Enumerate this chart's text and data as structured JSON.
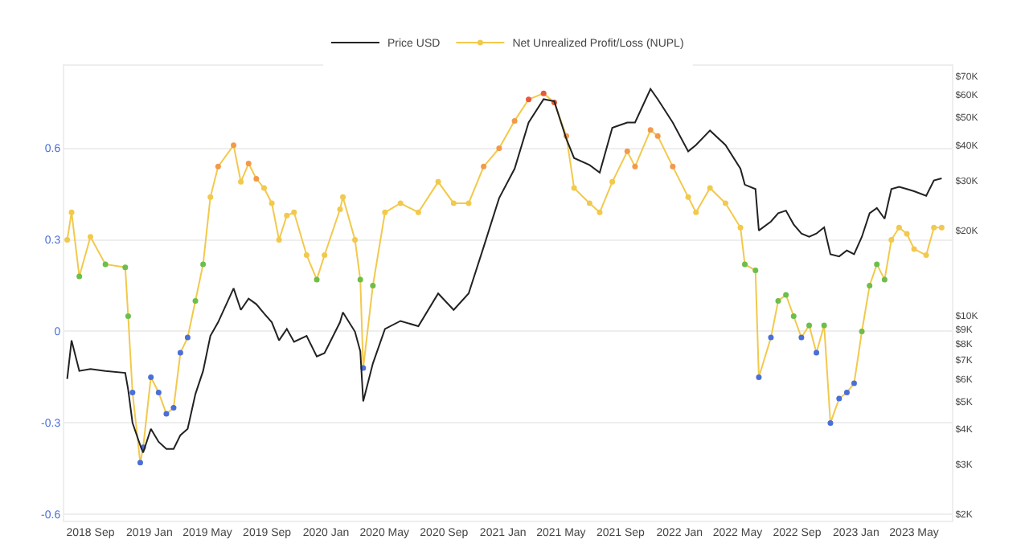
{
  "chart_data": {
    "type": "line",
    "x": [
      "2018-07-15",
      "2018-07-24",
      "2018-08-09",
      "2018-09-01",
      "2018-10-02",
      "2018-11-12",
      "2018-11-18",
      "2018-11-27",
      "2018-12-13",
      "2018-12-19",
      "2019-01-04",
      "2019-01-20",
      "2019-02-05",
      "2019-02-20",
      "2019-03-06",
      "2019-03-21",
      "2019-04-06",
      "2019-04-22",
      "2019-05-07",
      "2019-05-23",
      "2019-06-24",
      "2019-07-09",
      "2019-07-25",
      "2019-08-10",
      "2019-08-26",
      "2019-09-11",
      "2019-09-26",
      "2019-10-12",
      "2019-10-27",
      "2019-11-22",
      "2019-12-13",
      "2019-12-29",
      "2020-01-30",
      "2020-02-05",
      "2020-03-01",
      "2020-03-12",
      "2020-03-18",
      "2020-04-07",
      "2020-05-02",
      "2020-06-03",
      "2020-07-10",
      "2020-08-20",
      "2020-09-21",
      "2020-10-22",
      "2020-11-22",
      "2020-12-24",
      "2021-01-25",
      "2021-02-23",
      "2021-03-26",
      "2021-04-17",
      "2021-05-12",
      "2021-05-28",
      "2021-06-29",
      "2021-07-20",
      "2021-08-15",
      "2021-09-15",
      "2021-10-01",
      "2021-11-02",
      "2021-11-17",
      "2021-12-18",
      "2022-01-19",
      "2022-02-04",
      "2022-03-05",
      "2022-04-06",
      "2022-05-07",
      "2022-05-16",
      "2022-06-07",
      "2022-06-14",
      "2022-07-09",
      "2022-07-24",
      "2022-08-09",
      "2022-08-25",
      "2022-09-10",
      "2022-09-26",
      "2022-10-11",
      "2022-10-27",
      "2022-11-09",
      "2022-11-27",
      "2022-12-13",
      "2022-12-28",
      "2023-01-13",
      "2023-01-29",
      "2023-02-13",
      "2023-03-01",
      "2023-03-15",
      "2023-03-31",
      "2023-04-16",
      "2023-05-01",
      "2023-05-26",
      "2023-06-11",
      "2023-06-27"
    ],
    "series": [
      {
        "name": "Price USD",
        "color": "#222222",
        "axis": "y2",
        "marker": "none",
        "values": [
          6000,
          8200,
          6400,
          6500,
          6400,
          6300,
          5500,
          4200,
          3500,
          3300,
          4000,
          3600,
          3400,
          3400,
          3800,
          4000,
          5300,
          6400,
          8500,
          9500,
          12500,
          10500,
          11500,
          11000,
          10200,
          9500,
          8200,
          9000,
          8100,
          8500,
          7200,
          7400,
          9500,
          10300,
          8800,
          7500,
          5000,
          6800,
          9000,
          9600,
          9200,
          12000,
          10500,
          12000,
          17500,
          26000,
          33000,
          48000,
          58000,
          57000,
          42000,
          36000,
          34000,
          32000,
          46000,
          48000,
          48000,
          63000,
          58000,
          48000,
          38000,
          40000,
          45000,
          40000,
          33000,
          29000,
          28000,
          20000,
          21500,
          23000,
          23500,
          21000,
          19500,
          19000,
          19500,
          20500,
          16500,
          16200,
          17000,
          16500,
          19000,
          23000,
          24000,
          22000,
          28000,
          28500,
          28000,
          27500,
          26500,
          30000,
          30500
        ]
      },
      {
        "name": "Net Unrealized Profit/Loss (NUPL)",
        "color": "#f2c94c",
        "axis": "y",
        "marker": "circle",
        "values": [
          0.3,
          0.39,
          0.18,
          0.31,
          0.22,
          0.21,
          0.05,
          -0.2,
          -0.43,
          -0.38,
          -0.15,
          -0.2,
          -0.27,
          -0.25,
          -0.07,
          -0.02,
          0.1,
          0.22,
          0.44,
          0.54,
          0.61,
          0.49,
          0.55,
          0.5,
          0.47,
          0.42,
          0.3,
          0.38,
          0.39,
          0.25,
          0.17,
          0.25,
          0.4,
          0.44,
          0.3,
          0.17,
          -0.12,
          0.15,
          0.39,
          0.42,
          0.39,
          0.49,
          0.42,
          0.42,
          0.54,
          0.6,
          0.69,
          0.76,
          0.78,
          0.75,
          0.64,
          0.47,
          0.42,
          0.39,
          0.49,
          0.59,
          0.54,
          0.66,
          0.64,
          0.54,
          0.44,
          0.39,
          0.47,
          0.42,
          0.34,
          0.22,
          0.2,
          -0.15,
          -0.02,
          0.1,
          0.12,
          0.05,
          -0.02,
          0.02,
          -0.07,
          0.02,
          -0.3,
          -0.22,
          -0.2,
          -0.17,
          0.0,
          0.15,
          0.22,
          0.17,
          0.3,
          0.34,
          0.32,
          0.27,
          0.25,
          0.34,
          0.34
        ],
        "colors": [
          "#f2c94c",
          "#f2c94c",
          "#6cbf4a",
          "#f2c94c",
          "#6cbf4a",
          "#6cbf4a",
          "#6cbf4a",
          "#4a6fd6",
          "#4a6fd6",
          "#4a6fd6",
          "#4a6fd6",
          "#4a6fd6",
          "#4a6fd6",
          "#4a6fd6",
          "#4a6fd6",
          "#4a6fd6",
          "#6cbf4a",
          "#6cbf4a",
          "#f2c94c",
          "#f29a4a",
          "#f29a4a",
          "#f2c94c",
          "#f29a4a",
          "#f29a4a",
          "#f2c94c",
          "#f2c94c",
          "#f2c94c",
          "#f2c94c",
          "#f2c94c",
          "#f2c94c",
          "#6cbf4a",
          "#f2c94c",
          "#f2c94c",
          "#f2c94c",
          "#f2c94c",
          "#6cbf4a",
          "#4a6fd6",
          "#6cbf4a",
          "#f2c94c",
          "#f2c94c",
          "#f2c94c",
          "#f2c94c",
          "#f2c94c",
          "#f2c94c",
          "#f29a4a",
          "#f29a4a",
          "#f29a4a",
          "#e8583a",
          "#e8583a",
          "#e8583a",
          "#f29a4a",
          "#f2c94c",
          "#f2c94c",
          "#f2c94c",
          "#f2c94c",
          "#f29a4a",
          "#f29a4a",
          "#f29a4a",
          "#f29a4a",
          "#f29a4a",
          "#f2c94c",
          "#f2c94c",
          "#f2c94c",
          "#f2c94c",
          "#f2c94c",
          "#6cbf4a",
          "#6cbf4a",
          "#4a6fd6",
          "#4a6fd6",
          "#6cbf4a",
          "#6cbf4a",
          "#6cbf4a",
          "#4a6fd6",
          "#6cbf4a",
          "#4a6fd6",
          "#6cbf4a",
          "#4a6fd6",
          "#4a6fd6",
          "#4a6fd6",
          "#4a6fd6",
          "#6cbf4a",
          "#6cbf4a",
          "#6cbf4a",
          "#6cbf4a",
          "#f2c94c",
          "#f2c94c",
          "#f2c94c",
          "#f2c94c",
          "#f2c94c",
          "#f2c94c",
          "#f2c94c"
        ]
      }
    ],
    "xlim": [
      "2018-07-09",
      "2023-07-18"
    ],
    "xticks": [
      {
        "value": "2018-09-01",
        "label": "2018 Sep"
      },
      {
        "value": "2019-01-01",
        "label": "2019 Jan"
      },
      {
        "value": "2019-05-01",
        "label": "2019 May"
      },
      {
        "value": "2019-09-01",
        "label": "2019 Sep"
      },
      {
        "value": "2020-01-01",
        "label": "2020 Jan"
      },
      {
        "value": "2020-05-01",
        "label": "2020 May"
      },
      {
        "value": "2020-09-01",
        "label": "2020 Sep"
      },
      {
        "value": "2021-01-01",
        "label": "2021 Jan"
      },
      {
        "value": "2021-05-01",
        "label": "2021 May"
      },
      {
        "value": "2021-09-01",
        "label": "2021 Sep"
      },
      {
        "value": "2022-01-01",
        "label": "2022 Jan"
      },
      {
        "value": "2022-05-01",
        "label": "2022 May"
      },
      {
        "value": "2022-09-01",
        "label": "2022 Sep"
      },
      {
        "value": "2023-01-01",
        "label": "2023 Jan"
      },
      {
        "value": "2023-05-01",
        "label": "2023 May"
      }
    ],
    "ylim": [
      -0.62,
      0.87
    ],
    "yticks": [
      -0.6,
      -0.3,
      0,
      0.3,
      0.6
    ],
    "y2lim": [
      1900,
      76000
    ],
    "y2ticks": [
      {
        "value": 2000,
        "label": "$2K"
      },
      {
        "value": 3000,
        "label": "$3K"
      },
      {
        "value": 4000,
        "label": "$4K"
      },
      {
        "value": 5000,
        "label": "$5K"
      },
      {
        "value": 6000,
        "label": "$6K"
      },
      {
        "value": 7000,
        "label": "$7K"
      },
      {
        "value": 8000,
        "label": "$8K"
      },
      {
        "value": 9000,
        "label": "$9K"
      },
      {
        "value": 10000,
        "label": "$10K"
      },
      {
        "value": 20000,
        "label": "$20K"
      },
      {
        "value": 30000,
        "label": "$30K"
      },
      {
        "value": 40000,
        "label": "$40K"
      },
      {
        "value": 50000,
        "label": "$50K"
      },
      {
        "value": 60000,
        "label": "$60K"
      },
      {
        "value": 70000,
        "label": "$70K"
      }
    ],
    "log": "y2",
    "grid": "y",
    "legend": "top",
    "line_style": "solid"
  }
}
